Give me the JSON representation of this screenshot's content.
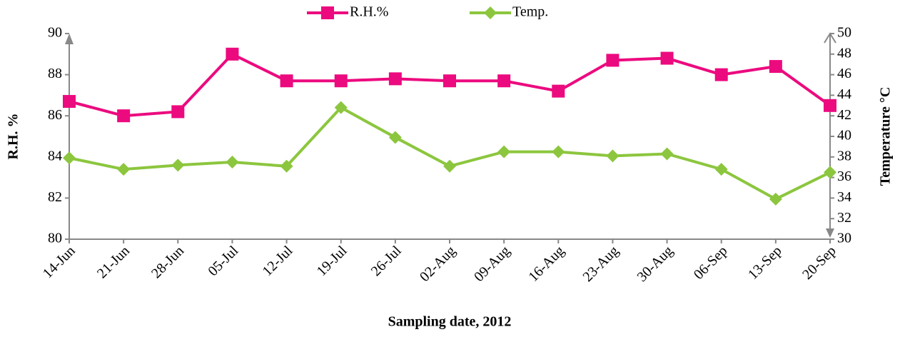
{
  "chart_data": {
    "type": "line",
    "x_label": "Sampling date, 2012",
    "y_label": "R.H. %",
    "y2_label": "Temperature °C",
    "categories": [
      "14-Jun",
      "21-Jun",
      "28-Jun",
      "05-Jul",
      "12-Jul",
      "19-Jul",
      "26-Jul",
      "02-Aug",
      "09-Aug",
      "16-Aug",
      "23-Aug",
      "30-Aug",
      "06-Sep",
      "13-Sep",
      "20-Sep"
    ],
    "series": [
      {
        "name": "R.H.%",
        "color": "#ec0a7f",
        "marker": "square",
        "axis": "y",
        "values": [
          86.7,
          86.0,
          86.2,
          89.0,
          87.7,
          87.7,
          87.8,
          87.7,
          87.7,
          87.2,
          88.7,
          88.8,
          88.0,
          88.4,
          86.5
        ]
      },
      {
        "name": "Temp.",
        "color": "#8cc63e",
        "marker": "diamond",
        "axis": "y2",
        "values": [
          37.9,
          36.8,
          37.2,
          37.5,
          37.1,
          42.8,
          39.9,
          37.1,
          38.5,
          38.5,
          38.1,
          38.3,
          36.8,
          33.9,
          36.5
        ]
      }
    ],
    "ylim": [
      80,
      90
    ],
    "yticks": [
      80,
      82,
      84,
      86,
      88,
      90
    ],
    "y2lim": [
      30,
      50
    ],
    "y2ticks": [
      30,
      32,
      34,
      36,
      38,
      40,
      42,
      44,
      46,
      48,
      50
    ],
    "legend": "top",
    "grid": false
  }
}
